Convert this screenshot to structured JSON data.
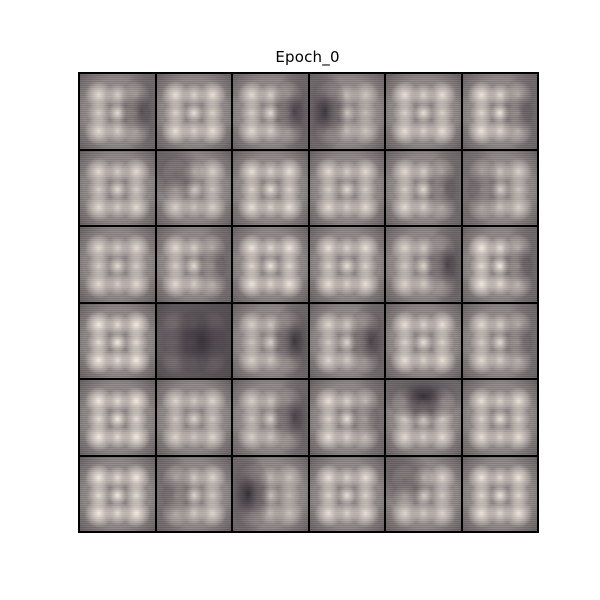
{
  "title": "Epoch_0",
  "grid": {
    "rows": 6,
    "cols": 6,
    "dark_zone_color": "#2e2830",
    "light_zone_color": "#f7eee4",
    "mid_color": "#8a8484",
    "tiles": [
      {
        "dark": "right",
        "strength": 0.7,
        "light": 0.8
      },
      {
        "dark": "none",
        "strength": 0.2,
        "light": 0.85
      },
      {
        "dark": "right",
        "strength": 0.8,
        "light": 0.8
      },
      {
        "dark": "left",
        "strength": 0.9,
        "light": 0.6
      },
      {
        "dark": "none",
        "strength": 0.2,
        "light": 0.85
      },
      {
        "dark": "right",
        "strength": 0.6,
        "light": 0.9
      },
      {
        "dark": "none",
        "strength": 0.3,
        "light": 0.8
      },
      {
        "dark": "topleft",
        "strength": 0.6,
        "light": 0.7
      },
      {
        "dark": "none",
        "strength": 0.2,
        "light": 0.85
      },
      {
        "dark": "none",
        "strength": 0.3,
        "light": 0.8
      },
      {
        "dark": "right",
        "strength": 0.6,
        "light": 0.8
      },
      {
        "dark": "left",
        "strength": 0.5,
        "light": 0.7
      },
      {
        "dark": "none",
        "strength": 0.3,
        "light": 0.8
      },
      {
        "dark": "right",
        "strength": 0.5,
        "light": 0.8
      },
      {
        "dark": "none",
        "strength": 0.2,
        "light": 0.9
      },
      {
        "dark": "none",
        "strength": 0.2,
        "light": 0.85
      },
      {
        "dark": "right",
        "strength": 0.8,
        "light": 0.75
      },
      {
        "dark": "right",
        "strength": 0.6,
        "light": 0.95
      },
      {
        "dark": "none",
        "strength": 0.2,
        "light": 0.95
      },
      {
        "dark": "full",
        "strength": 0.9,
        "light": 0.5
      },
      {
        "dark": "right",
        "strength": 0.9,
        "light": 0.7
      },
      {
        "dark": "right",
        "strength": 0.8,
        "light": 0.75
      },
      {
        "dark": "none",
        "strength": 0.2,
        "light": 0.85
      },
      {
        "dark": "right",
        "strength": 0.5,
        "light": 0.8
      },
      {
        "dark": "none",
        "strength": 0.2,
        "light": 0.95
      },
      {
        "dark": "none",
        "strength": 0.3,
        "light": 0.75
      },
      {
        "dark": "right",
        "strength": 0.8,
        "light": 0.7
      },
      {
        "dark": "right",
        "strength": 0.4,
        "light": 0.85
      },
      {
        "dark": "top",
        "strength": 0.95,
        "light": 0.8
      },
      {
        "dark": "none",
        "strength": 0.2,
        "light": 0.85
      },
      {
        "dark": "none",
        "strength": 0.2,
        "light": 0.95
      },
      {
        "dark": "left",
        "strength": 0.5,
        "light": 0.75
      },
      {
        "dark": "left",
        "strength": 0.95,
        "light": 0.55
      },
      {
        "dark": "none",
        "strength": 0.2,
        "light": 0.85
      },
      {
        "dark": "topleft",
        "strength": 0.6,
        "light": 0.75
      },
      {
        "dark": "none",
        "strength": 0.2,
        "light": 0.9
      }
    ]
  }
}
